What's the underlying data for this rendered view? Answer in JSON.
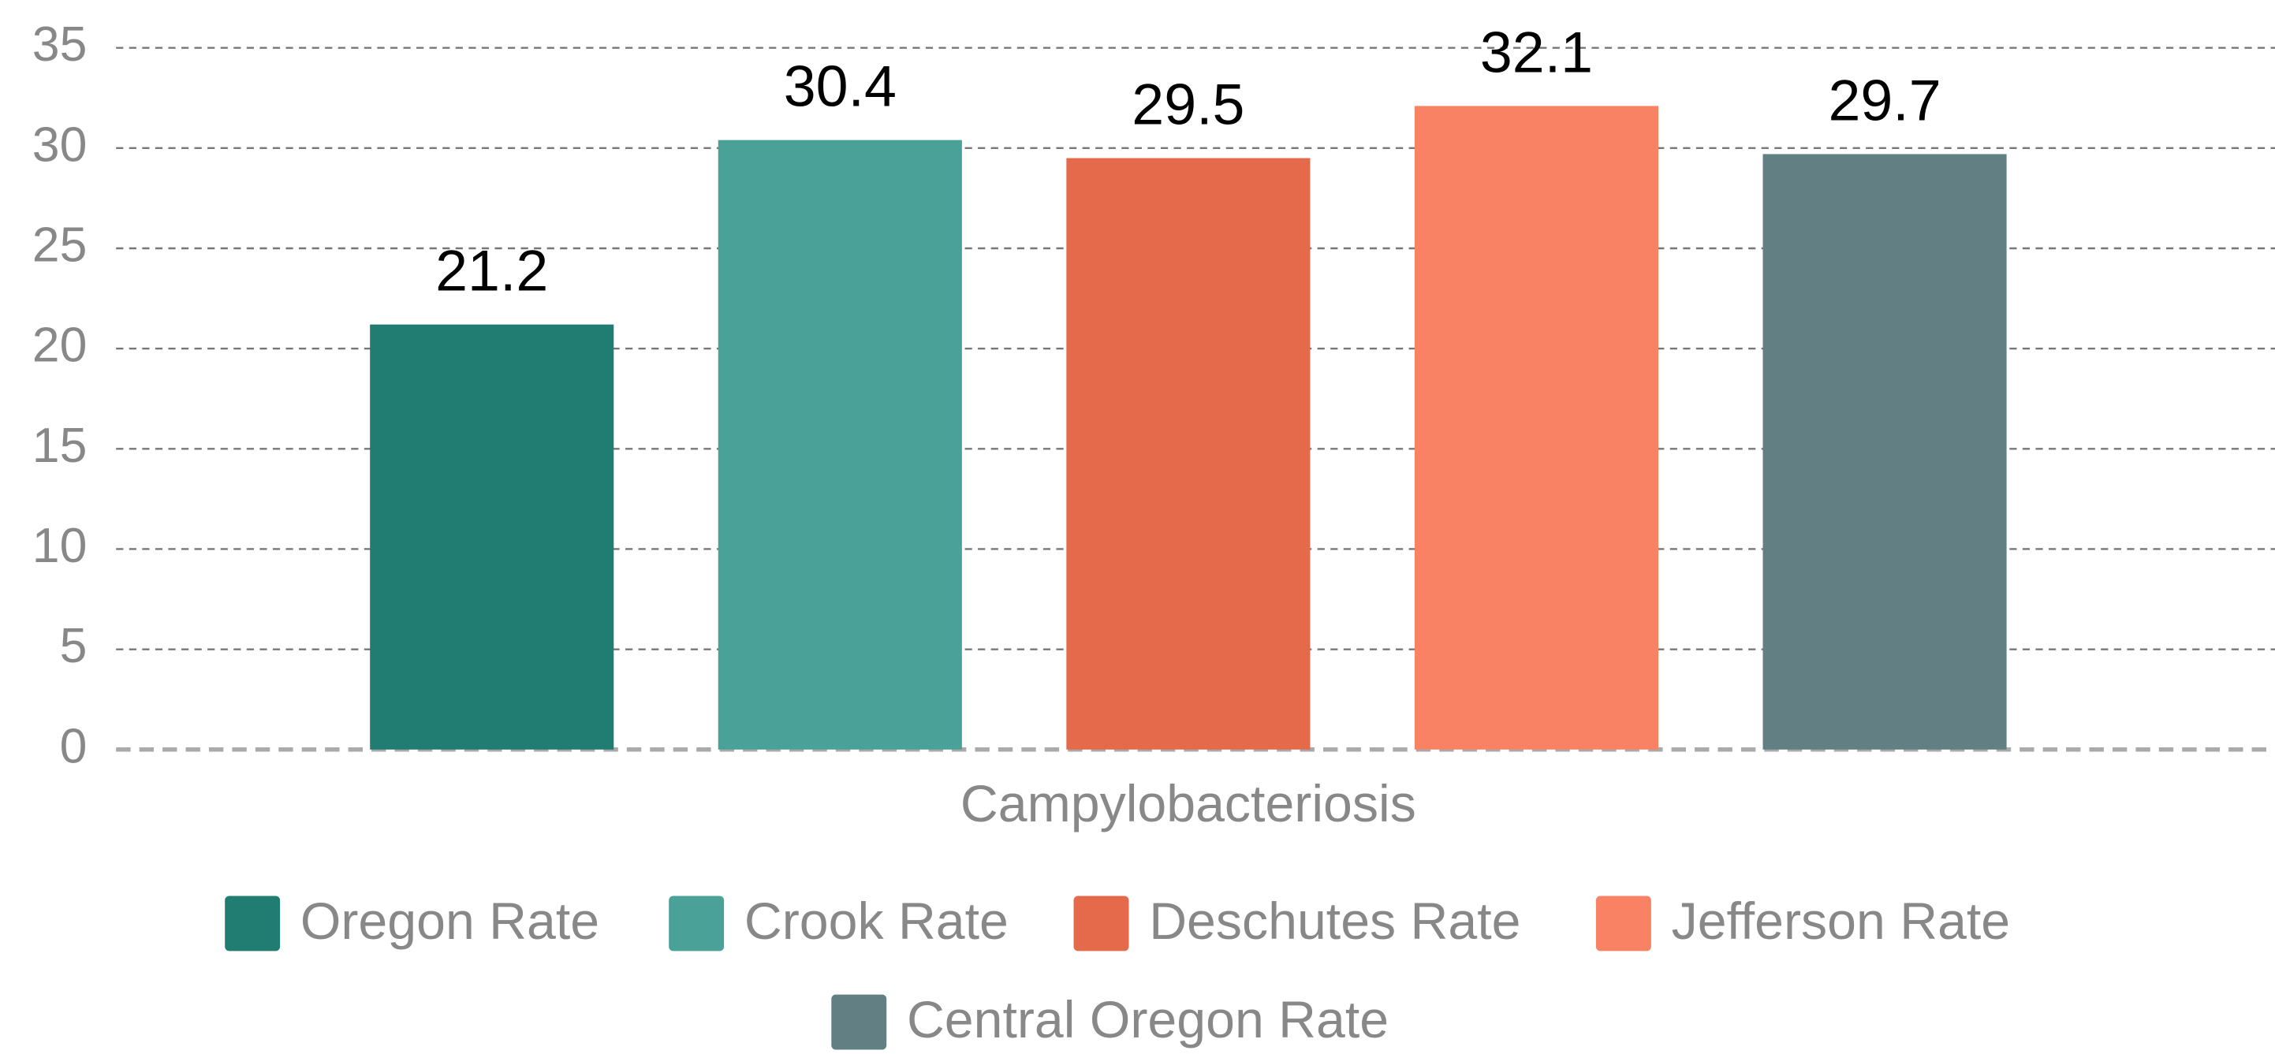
{
  "chart_data": {
    "type": "bar",
    "categories": [
      "Campylobacteriosis"
    ],
    "series": [
      {
        "name": "Oregon Rate",
        "color": "#217d72",
        "values": [
          21.2
        ]
      },
      {
        "name": "Crook Rate",
        "color": "#4aa198",
        "values": [
          30.4
        ]
      },
      {
        "name": "Deschutes Rate",
        "color": "#e5694b",
        "values": [
          29.5
        ]
      },
      {
        "name": "Jefferson Rate",
        "color": "#f98264",
        "values": [
          32.1
        ]
      },
      {
        "name": "Central Oregon Rate",
        "color": "#628084",
        "values": [
          29.7
        ]
      }
    ],
    "ylim": [
      0,
      35
    ],
    "yticks": [
      0,
      5,
      10,
      15,
      20,
      25,
      30,
      35
    ],
    "grid": true
  }
}
